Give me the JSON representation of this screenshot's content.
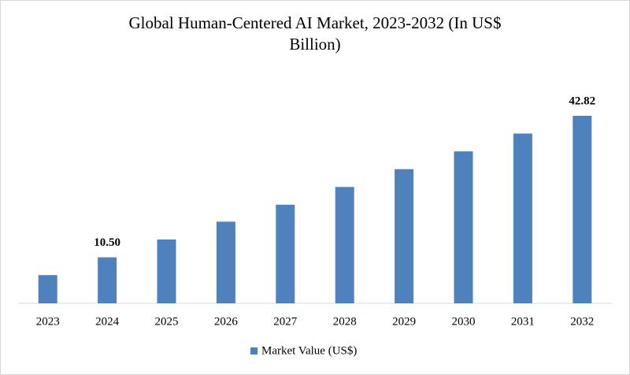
{
  "chart_data": {
    "type": "bar",
    "title_lines": [
      "Global Human-Centered AI Market, 2023-2032 (In US$",
      "Billion)"
    ],
    "categories": [
      "2023",
      "2024",
      "2025",
      "2026",
      "2027",
      "2028",
      "2029",
      "2030",
      "2031",
      "2032"
    ],
    "series": [
      {
        "name": "Market Value (US$)",
        "color": "#4f81bd",
        "values": [
          6.44,
          10.5,
          14.57,
          18.64,
          22.51,
          26.57,
          30.64,
          34.7,
          38.77,
          42.82
        ],
        "value_labels": [
          null,
          "10.50",
          null,
          null,
          null,
          null,
          null,
          null,
          null,
          "42.82"
        ]
      }
    ],
    "legend": "bottom"
  }
}
